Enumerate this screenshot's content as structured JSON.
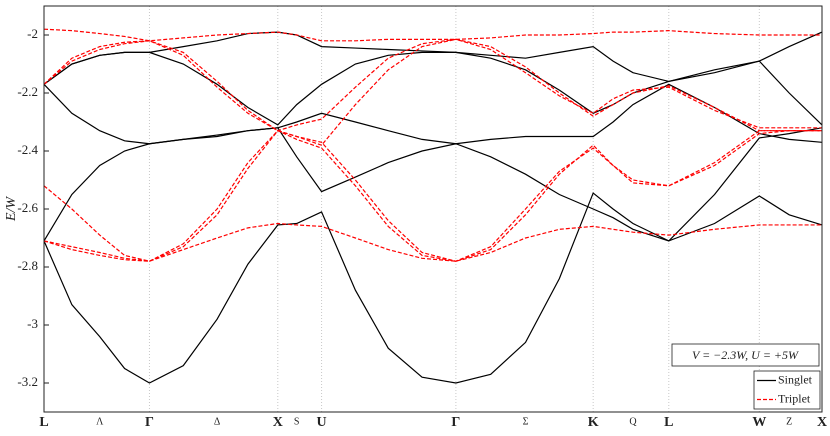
{
  "chart_data": {
    "type": "line",
    "ylabel": "E/W",
    "annotation": "V = −2.3W, U = +5W",
    "xlim": [
      0,
      7.82
    ],
    "ylim": [
      -3.3,
      -1.9
    ],
    "yticks": [
      -3.2,
      -3,
      -2.8,
      -2.6,
      -2.4,
      -2.2,
      -2
    ],
    "xticks": [
      {
        "value": 0,
        "label": "L"
      },
      {
        "value": 1.06,
        "label": "Γ"
      },
      {
        "value": 2.35,
        "label": "X"
      },
      {
        "value": 2.79,
        "label": "U"
      },
      {
        "value": 4.14,
        "label": "Γ"
      },
      {
        "value": 5.52,
        "label": "K"
      },
      {
        "value": 6.28,
        "label": "L"
      },
      {
        "value": 7.19,
        "label": "W"
      },
      {
        "value": 7.82,
        "label": "X"
      }
    ],
    "xminorticks": [
      {
        "value": 0.56,
        "label": "Λ"
      },
      {
        "value": 1.74,
        "label": "Δ"
      },
      {
        "value": 2.54,
        "label": "S"
      },
      {
        "value": 4.84,
        "label": "Σ"
      },
      {
        "value": 5.92,
        "label": "Q"
      },
      {
        "value": 7.49,
        "label": "Z"
      }
    ],
    "grid": true,
    "legend": "lower right",
    "x": [
      0,
      0.28,
      0.56,
      0.81,
      1.06,
      1.4,
      1.74,
      2.05,
      2.35,
      2.54,
      2.79,
      3.13,
      3.46,
      3.8,
      4.14,
      4.49,
      4.84,
      5.18,
      5.52,
      5.72,
      5.92,
      6.28,
      6.74,
      7.19,
      7.49,
      7.82
    ],
    "series": [
      {
        "name": "Singlet",
        "color": "#000000",
        "dashed": false,
        "bands": [
          [
            -2.71,
            -2.93,
            -3.04,
            -3.15,
            -3.2,
            -3.14,
            -2.98,
            -2.79,
            -2.655,
            -2.65,
            -2.61,
            -2.88,
            -3.08,
            -3.18,
            -3.2,
            -3.17,
            -3.06,
            -2.84,
            -2.545,
            -2.6,
            -2.65,
            -2.71,
            -2.65,
            -2.555,
            -2.62,
            -2.655
          ],
          [
            -2.71,
            -2.55,
            -2.45,
            -2.4,
            -2.375,
            -2.36,
            -2.345,
            -2.33,
            -2.32,
            -2.42,
            -2.54,
            -2.49,
            -2.44,
            -2.4,
            -2.375,
            -2.42,
            -2.48,
            -2.55,
            -2.6,
            -2.63,
            -2.67,
            -2.71,
            -2.55,
            -2.355,
            -2.34,
            -2.32
          ],
          [
            -2.17,
            -2.27,
            -2.33,
            -2.365,
            -2.375,
            -2.36,
            -2.35,
            -2.33,
            -2.32,
            -2.3,
            -2.27,
            -2.3,
            -2.33,
            -2.36,
            -2.375,
            -2.36,
            -2.35,
            -2.35,
            -2.35,
            -2.3,
            -2.24,
            -2.17,
            -2.25,
            -2.34,
            -2.36,
            -2.37
          ],
          [
            -2.17,
            -2.1,
            -2.07,
            -2.06,
            -2.06,
            -2.04,
            -2.02,
            -1.995,
            -1.99,
            -2.0,
            -2.04,
            -2.045,
            -2.05,
            -2.055,
            -2.06,
            -2.08,
            -2.12,
            -2.19,
            -2.27,
            -2.24,
            -2.2,
            -2.16,
            -2.12,
            -2.09,
            -2.2,
            -2.31
          ],
          [
            -2.17,
            -2.1,
            -2.07,
            -2.06,
            -2.06,
            -2.1,
            -2.17,
            -2.25,
            -2.31,
            -2.24,
            -2.17,
            -2.1,
            -2.07,
            -2.06,
            -2.06,
            -2.07,
            -2.08,
            -2.06,
            -2.04,
            -2.09,
            -2.13,
            -2.16,
            -2.13,
            -2.09,
            -2.04,
            -1.99
          ]
        ]
      },
      {
        "name": "Triplet",
        "color": "#ff0000",
        "dashed": true,
        "bands": [
          [
            -1.98,
            -1.985,
            -1.995,
            -2.005,
            -2.02,
            -2.01,
            -2.0,
            -1.995,
            -1.99,
            -2.0,
            -2.02,
            -2.02,
            -2.015,
            -2.015,
            -2.015,
            -2.01,
            -2.0,
            -2.0,
            -1.995,
            -1.99,
            -1.99,
            -1.985,
            -1.995,
            -2.0,
            -2.0,
            -2.0
          ],
          [
            -2.17,
            -2.09,
            -2.05,
            -2.03,
            -2.02,
            -2.06,
            -2.16,
            -2.26,
            -2.33,
            -2.35,
            -2.38,
            -2.24,
            -2.12,
            -2.04,
            -2.015,
            -2.04,
            -2.11,
            -2.2,
            -2.28,
            -2.24,
            -2.2,
            -2.175,
            -2.25,
            -2.33,
            -2.33,
            -2.33
          ],
          [
            -2.17,
            -2.08,
            -2.04,
            -2.025,
            -2.02,
            -2.07,
            -2.18,
            -2.27,
            -2.33,
            -2.31,
            -2.29,
            -2.18,
            -2.08,
            -2.03,
            -2.015,
            -2.05,
            -2.13,
            -2.21,
            -2.27,
            -2.22,
            -2.19,
            -2.18,
            -2.26,
            -2.32,
            -2.32,
            -2.32
          ],
          [
            -2.52,
            -2.6,
            -2.69,
            -2.76,
            -2.78,
            -2.72,
            -2.6,
            -2.44,
            -2.33,
            -2.35,
            -2.37,
            -2.5,
            -2.64,
            -2.75,
            -2.78,
            -2.74,
            -2.62,
            -2.48,
            -2.38,
            -2.45,
            -2.51,
            -2.52,
            -2.45,
            -2.34,
            -2.33,
            -2.33
          ],
          [
            -2.71,
            -2.73,
            -2.75,
            -2.77,
            -2.78,
            -2.74,
            -2.7,
            -2.665,
            -2.65,
            -2.655,
            -2.66,
            -2.7,
            -2.74,
            -2.77,
            -2.78,
            -2.75,
            -2.7,
            -2.67,
            -2.66,
            -2.67,
            -2.68,
            -2.69,
            -2.67,
            -2.655,
            -2.655,
            -2.655
          ],
          [
            -2.71,
            -2.74,
            -2.76,
            -2.775,
            -2.78,
            -2.73,
            -2.62,
            -2.46,
            -2.33,
            -2.36,
            -2.39,
            -2.52,
            -2.66,
            -2.76,
            -2.78,
            -2.73,
            -2.6,
            -2.47,
            -2.39,
            -2.45,
            -2.5,
            -2.52,
            -2.44,
            -2.33,
            -2.33,
            -2.33
          ]
        ]
      }
    ]
  }
}
